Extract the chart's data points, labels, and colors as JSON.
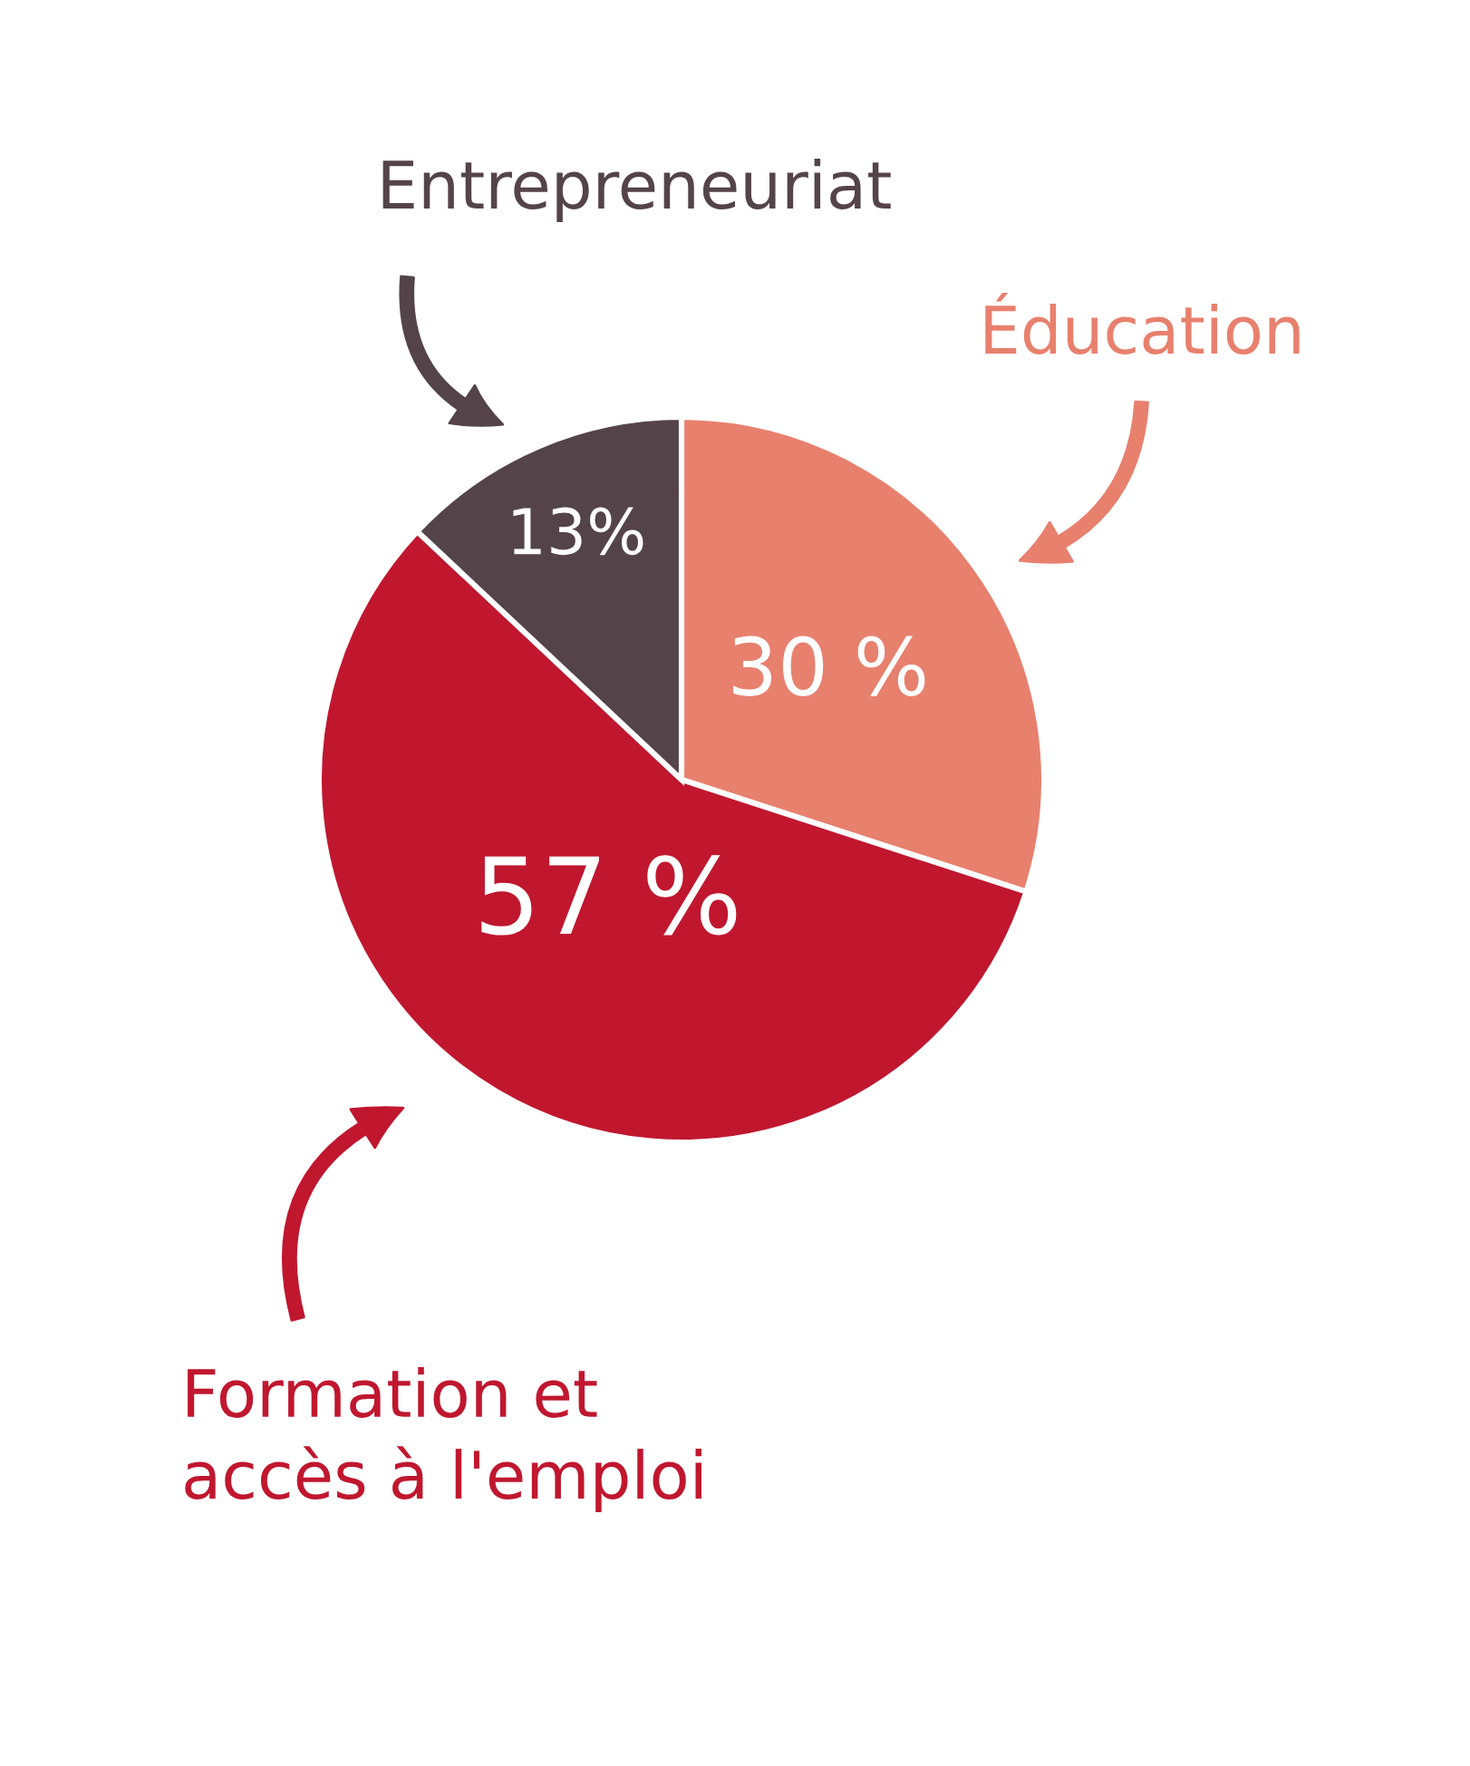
{
  "chart_data": {
    "type": "pie",
    "categories": [
      "Éducation",
      "Formation et\naccès à l'emploi",
      "Entrepreneuriat"
    ],
    "values": [
      30,
      57,
      13
    ],
    "colors": [
      "#e8806e",
      "#c0172f",
      "#54444a"
    ],
    "value_labels": [
      "30 %",
      "57 %",
      "13%"
    ],
    "legend": false
  }
}
